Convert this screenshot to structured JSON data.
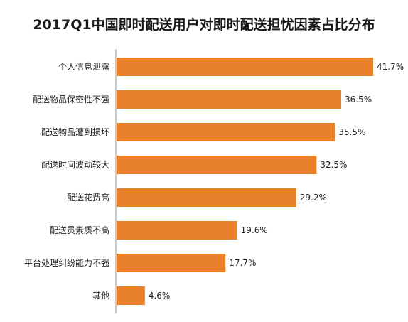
{
  "chart_data": {
    "type": "bar",
    "orientation": "horizontal",
    "title": "2017Q1中国即时配送用户对即时配送担忧因素占比分布",
    "categories": [
      "个人信息泄露",
      "配送物品保密性不强",
      "配送物品遭到损坏",
      "配送时间波动较大",
      "配送花费高",
      "配送员素质不高",
      "平台处理纠纷能力不强",
      "其他"
    ],
    "values": [
      41.7,
      36.5,
      35.5,
      32.5,
      29.2,
      19.6,
      17.7,
      4.6
    ],
    "value_labels": [
      "41.7%",
      "36.5%",
      "35.5%",
      "32.5%",
      "29.2%",
      "19.6%",
      "17.7%",
      "4.6%"
    ],
    "unit": "%",
    "xlim": [
      0,
      41.7
    ],
    "grid": false,
    "bar_color": "#E8812A"
  }
}
